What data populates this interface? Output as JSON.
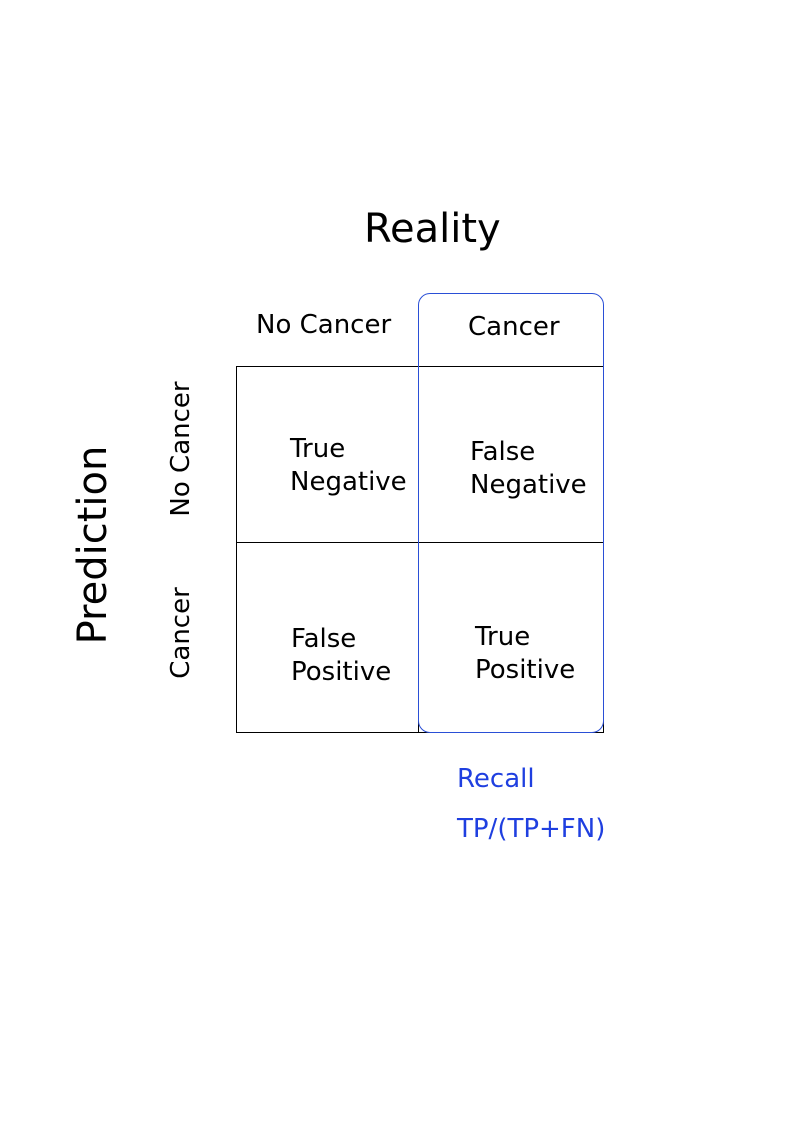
{
  "reality_label": "Reality",
  "prediction_label": "Prediction",
  "columns": [
    "No Cancer",
    "Cancer"
  ],
  "rows": [
    "No Cancer",
    "Cancer"
  ],
  "cells": {
    "true_negative": [
      "True",
      "Negative"
    ],
    "false_negative": [
      "False",
      "Negative"
    ],
    "false_positive": [
      "False",
      "Positive"
    ],
    "true_positive": [
      "True",
      "Positive"
    ]
  },
  "recall": {
    "label": "Recall",
    "formula": "TP/(TP+FN)",
    "color": "#1f3fe0"
  }
}
